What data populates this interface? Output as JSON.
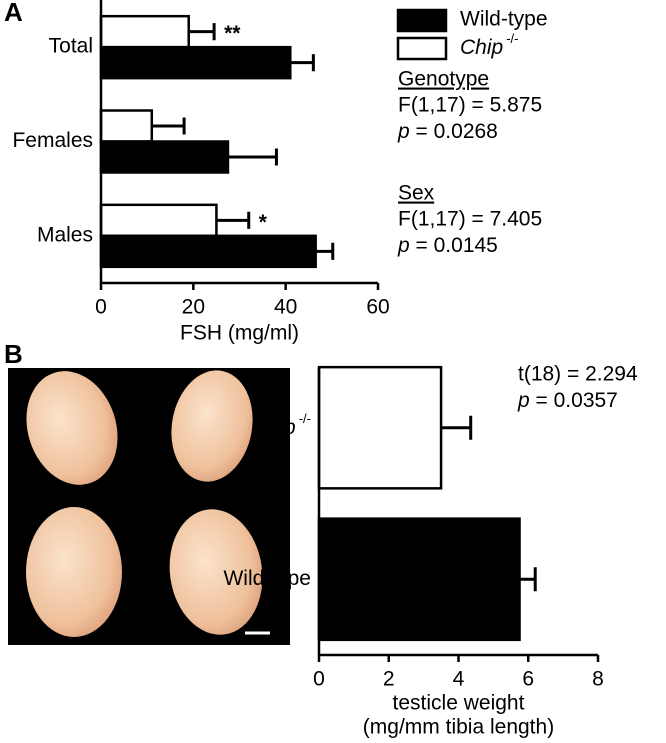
{
  "panel_labels": [
    "A",
    "B"
  ],
  "chart_data": [
    {
      "type": "bar",
      "orientation": "horizontal",
      "categories": [
        "Total",
        "Females",
        "Males"
      ],
      "series": [
        {
          "name": "Chip-/-",
          "color": "#ffffff",
          "values": [
            19,
            11,
            25
          ],
          "errors": [
            5.5,
            7,
            7
          ],
          "significance": [
            "**",
            null,
            "*"
          ]
        },
        {
          "name": "Wild-type",
          "color": "#000000",
          "values": [
            41,
            27.5,
            46.5
          ],
          "errors": [
            5,
            10.5,
            3.7
          ]
        }
      ],
      "xlabel": "FSH (mg/ml)",
      "xlim": [
        0,
        60
      ],
      "xticks": [
        0,
        20,
        40,
        60
      ],
      "legend": "right",
      "stats": [
        {
          "title": "Genotype",
          "lines": [
            "F(1,17) = 5.875",
            "p = 0.0268"
          ]
        },
        {
          "title": "Sex",
          "lines": [
            "F(1,17) = 7.405",
            "p = 0.0145"
          ]
        }
      ]
    },
    {
      "type": "bar",
      "orientation": "horizontal",
      "categories": [
        "Chip-/-",
        "Wild-type"
      ],
      "series": [
        {
          "colors": [
            "#ffffff",
            "#000000"
          ],
          "values": [
            3.5,
            5.75
          ],
          "errors": [
            0.85,
            0.45
          ]
        }
      ],
      "xlabel": [
        "testicle weight",
        "(mg/mm tibia length)"
      ],
      "xlim": [
        0,
        8
      ],
      "xticks": [
        0,
        2,
        4,
        6,
        8
      ],
      "stats": [
        {
          "lines": [
            "t(18) = 2.294",
            "p = 0.0357"
          ]
        }
      ]
    }
  ]
}
